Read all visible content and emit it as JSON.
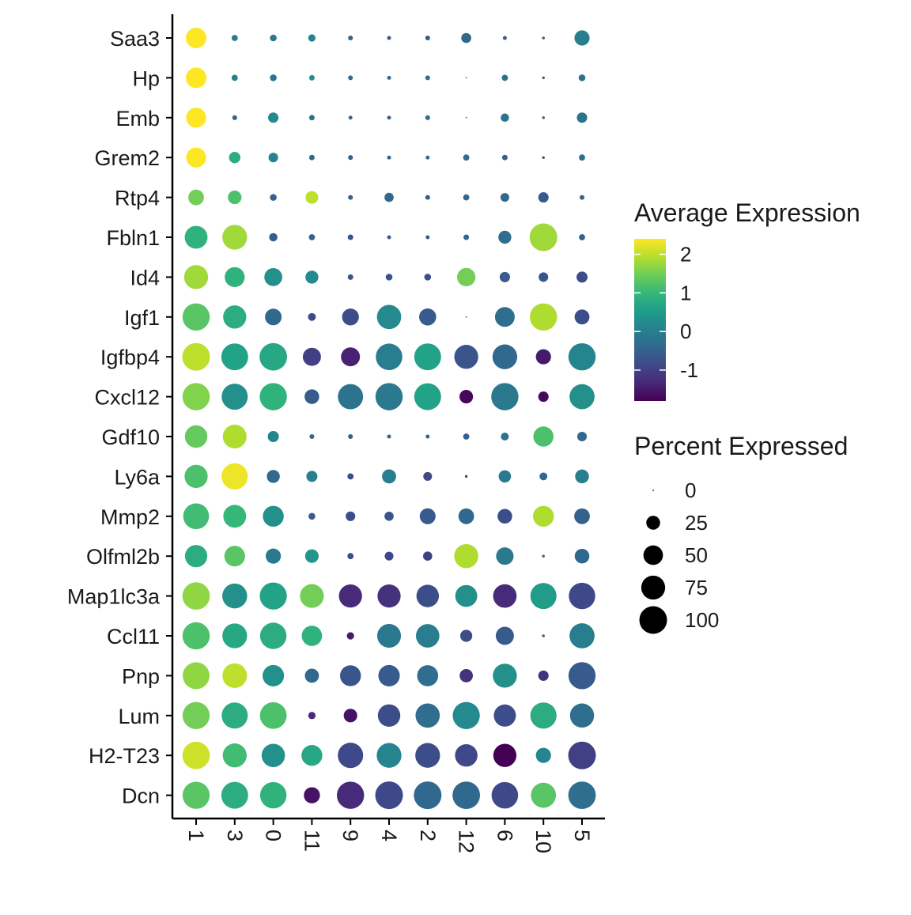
{
  "chart_data": {
    "type": "dotplot",
    "genes": [
      "Saa3",
      "Hp",
      "Emb",
      "Grem2",
      "Rtp4",
      "Fbln1",
      "Id4",
      "Igf1",
      "Igfbp4",
      "Cxcl12",
      "Gdf10",
      "Ly6a",
      "Mmp2",
      "Olfml2b",
      "Map1lc3a",
      "Ccl11",
      "Pnp",
      "Lum",
      "H2-T23",
      "Dcn"
    ],
    "clusters": [
      "1",
      "3",
      "0",
      "11",
      "9",
      "4",
      "2",
      "12",
      "6",
      "10",
      "5"
    ],
    "average_expression": [
      [
        2.4,
        -0.1,
        -0.1,
        0.1,
        -0.5,
        -0.6,
        -0.6,
        -0.4,
        -0.6,
        -0.6,
        0.0
      ],
      [
        2.4,
        0.0,
        -0.2,
        0.3,
        -0.3,
        -0.4,
        -0.3,
        -0.4,
        -0.3,
        -0.4,
        -0.3
      ],
      [
        2.4,
        -0.5,
        0.2,
        -0.3,
        -0.5,
        -0.5,
        -0.3,
        -0.4,
        -0.2,
        -0.4,
        -0.2
      ],
      [
        2.4,
        0.8,
        0.1,
        -0.4,
        -0.5,
        -0.5,
        -0.4,
        -0.3,
        -0.5,
        -0.6,
        -0.3
      ],
      [
        1.5,
        1.2,
        -0.5,
        2.0,
        -0.5,
        -0.4,
        -0.6,
        -0.4,
        -0.4,
        -0.6,
        -0.5
      ],
      [
        0.9,
        1.8,
        -0.6,
        -0.5,
        -0.7,
        -0.6,
        -0.6,
        -0.5,
        -0.3,
        1.8,
        -0.5
      ],
      [
        1.8,
        0.9,
        0.3,
        0.2,
        -0.7,
        -0.7,
        -0.8,
        1.5,
        -0.6,
        -0.7,
        -0.8
      ],
      [
        1.3,
        0.8,
        -0.4,
        -0.9,
        -0.8,
        0.2,
        -0.6,
        -0.5,
        -0.3,
        1.9,
        -0.8
      ],
      [
        2.0,
        0.6,
        0.7,
        -1.0,
        -1.4,
        0.0,
        0.6,
        -0.7,
        -0.4,
        -1.5,
        0.1
      ],
      [
        1.6,
        0.3,
        0.9,
        -0.6,
        -0.2,
        -0.1,
        0.6,
        -1.7,
        -0.1,
        -1.7,
        0.3
      ],
      [
        1.4,
        1.9,
        0.1,
        -0.4,
        -0.5,
        -0.5,
        -0.5,
        -0.5,
        -0.2,
        1.2,
        -0.4
      ],
      [
        1.2,
        2.3,
        -0.4,
        0.0,
        -0.8,
        0.0,
        -0.9,
        -0.8,
        -0.1,
        -0.4,
        0.0
      ],
      [
        1.1,
        1.0,
        0.3,
        -0.6,
        -0.8,
        -0.7,
        -0.6,
        -0.4,
        -0.8,
        1.9,
        -0.5
      ],
      [
        0.8,
        1.3,
        -0.1,
        0.4,
        -0.8,
        -0.9,
        -1.0,
        1.9,
        -0.1,
        -0.5,
        -0.4
      ],
      [
        1.7,
        0.3,
        0.6,
        1.5,
        -1.3,
        -1.2,
        -0.8,
        0.3,
        -1.3,
        0.5,
        -0.9
      ],
      [
        1.2,
        0.7,
        0.8,
        0.9,
        -1.5,
        -0.1,
        0.0,
        -0.8,
        -0.6,
        -0.6,
        0.0
      ],
      [
        1.7,
        2.0,
        0.3,
        -0.4,
        -0.7,
        -0.6,
        -0.3,
        -1.2,
        0.3,
        -1.2,
        -0.6
      ],
      [
        1.5,
        0.8,
        1.2,
        -1.3,
        -1.6,
        -0.8,
        -0.3,
        0.2,
        -0.8,
        0.8,
        -0.3
      ],
      [
        2.1,
        1.1,
        0.3,
        0.7,
        -0.9,
        0.1,
        -0.8,
        -0.9,
        -1.8,
        0.1,
        -1.0
      ],
      [
        1.3,
        0.8,
        0.9,
        -1.6,
        -1.3,
        -0.9,
        -0.4,
        -0.4,
        -0.9,
        1.3,
        -0.3
      ]
    ],
    "percent_expressed": [
      [
        55,
        5,
        6,
        7,
        3,
        2,
        3,
        13,
        2,
        1,
        30
      ],
      [
        55,
        5,
        6,
        4,
        3,
        2,
        3,
        0,
        5,
        1,
        6
      ],
      [
        52,
        3,
        14,
        4,
        2,
        2,
        3,
        0,
        9,
        1,
        14
      ],
      [
        52,
        17,
        12,
        4,
        3,
        2,
        2,
        5,
        4,
        1,
        5
      ],
      [
        32,
        24,
        6,
        21,
        3,
        11,
        3,
        5,
        10,
        14,
        3
      ],
      [
        68,
        80,
        9,
        5,
        4,
        2,
        2,
        4,
        22,
        100,
        5
      ],
      [
        75,
        52,
        42,
        22,
        4,
        6,
        6,
        44,
        14,
        12,
        16
      ],
      [
        97,
        70,
        36,
        8,
        37,
        77,
        38,
        0,
        51,
        97,
        29
      ],
      [
        100,
        94,
        99,
        43,
        47,
        92,
        94,
        75,
        80,
        30,
        97
      ],
      [
        97,
        89,
        97,
        28,
        83,
        97,
        94,
        24,
        97,
        14,
        82
      ],
      [
        66,
        74,
        16,
        3,
        3,
        2,
        2,
        5,
        8,
        53,
        12
      ],
      [
        70,
        90,
        22,
        16,
        5,
        26,
        10,
        1,
        20,
        8,
        25
      ],
      [
        87,
        68,
        57,
        6,
        12,
        11,
        33,
        32,
        28,
        57,
        32
      ],
      [
        65,
        56,
        30,
        24,
        5,
        10,
        11,
        76,
        40,
        1,
        28
      ],
      [
        98,
        81,
        96,
        74,
        70,
        70,
        66,
        63,
        72,
        89,
        91
      ],
      [
        97,
        80,
        91,
        54,
        7,
        74,
        72,
        19,
        43,
        1,
        82
      ],
      [
        94,
        79,
        60,
        26,
        57,
        60,
        58,
        23,
        75,
        14,
        96
      ],
      [
        96,
        89,
        93,
        7,
        24,
        66,
        77,
        96,
        64,
        90,
        76
      ],
      [
        98,
        75,
        71,
        57,
        84,
        80,
        80,
        66,
        70,
        30,
        100
      ],
      [
        96,
        94,
        91,
        34,
        97,
        100,
        100,
        99,
        92,
        82,
        99
      ]
    ],
    "color_scale": {
      "title": "Average Expression",
      "min": -1.8,
      "max": 2.4,
      "ticks": [
        2,
        1,
        0,
        -1
      ],
      "stops": [
        "#440154",
        "#482878",
        "#3E4A89",
        "#31688E",
        "#26828E",
        "#1F9E89",
        "#35B779",
        "#6DCD59",
        "#B4DE2C",
        "#FDE725"
      ]
    },
    "size_scale": {
      "title": "Percent Expressed",
      "ticks": [
        0,
        25,
        50,
        75,
        100
      ]
    },
    "legend_placement": "right",
    "grid": false
  }
}
